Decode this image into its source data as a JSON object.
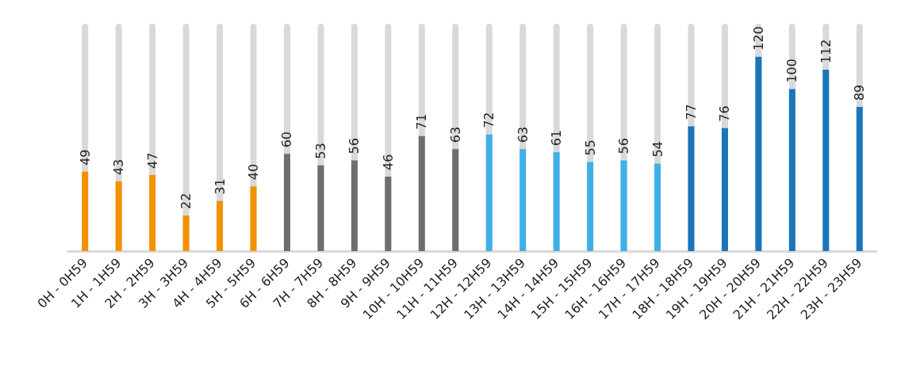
{
  "chart_data": {
    "type": "bar",
    "categories": [
      "0H - 0H59",
      "1H - 1H59",
      "2H - 2H59",
      "3H - 3H59",
      "4H - 4H59",
      "5H - 5H59",
      "6H - 6H59",
      "7H - 7H59",
      "8H - 8H59",
      "9H - 9H59",
      "10H - 10H59",
      "11H - 11H59",
      "12H - 12H59",
      "13H - 13H59",
      "14H - 14H59",
      "15H - 15H59",
      "16H - 16H59",
      "17H - 17H59",
      "18H - 18H59",
      "19H - 19H59",
      "20H - 20H59",
      "21H - 21H59",
      "22H - 22H59",
      "23H - 23H59"
    ],
    "values": [
      49,
      43,
      47,
      22,
      31,
      40,
      60,
      53,
      56,
      46,
      71,
      63,
      72,
      63,
      61,
      55,
      56,
      54,
      77,
      76,
      120,
      100,
      112,
      89
    ],
    "colors": [
      "#f39200",
      "#f39200",
      "#f39200",
      "#f39200",
      "#f39200",
      "#f39200",
      "#6e6e6e",
      "#6e6e6e",
      "#6e6e6e",
      "#6e6e6e",
      "#6e6e6e",
      "#6e6e6e",
      "#3fb0e6",
      "#3fb0e6",
      "#3fb0e6",
      "#3fb0e6",
      "#3fb0e6",
      "#3fb0e6",
      "#1a75bb",
      "#1a75bb",
      "#1a75bb",
      "#1a75bb",
      "#1a75bb",
      "#1a75bb"
    ],
    "data_labels": true
  }
}
